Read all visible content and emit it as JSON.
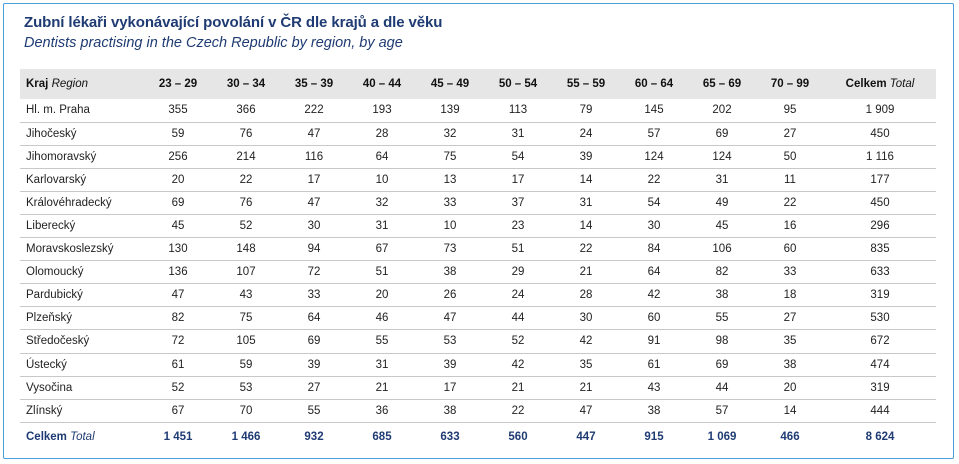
{
  "title": "Zubní lékaři vykonávající povolání v ČR dle krajů a dle věku",
  "subtitle": "Dentists practising in the Czech Republic by region, by age",
  "header": {
    "region_cz": "Kraj",
    "region_en": "Region",
    "ages": [
      "23 – 29",
      "30 – 34",
      "35 – 39",
      "40 – 44",
      "45 – 49",
      "50 – 54",
      "55 – 59",
      "60 – 64",
      "65 – 69",
      "70 – 99"
    ],
    "total_cz": "Celkem",
    "total_en": "Total"
  },
  "rows": [
    {
      "region": "Hl. m. Praha",
      "values": [
        "355",
        "366",
        "222",
        "193",
        "139",
        "113",
        "79",
        "145",
        "202",
        "95"
      ],
      "total": "1 909"
    },
    {
      "region": "Jihočeský",
      "values": [
        "59",
        "76",
        "47",
        "28",
        "32",
        "31",
        "24",
        "57",
        "69",
        "27"
      ],
      "total": "450"
    },
    {
      "region": "Jihomoravský",
      "values": [
        "256",
        "214",
        "116",
        "64",
        "75",
        "54",
        "39",
        "124",
        "124",
        "50"
      ],
      "total": "1 116"
    },
    {
      "region": "Karlovarský",
      "values": [
        "20",
        "22",
        "17",
        "10",
        "13",
        "17",
        "14",
        "22",
        "31",
        "11"
      ],
      "total": "177"
    },
    {
      "region": "Královéhradecký",
      "values": [
        "69",
        "76",
        "47",
        "32",
        "33",
        "37",
        "31",
        "54",
        "49",
        "22"
      ],
      "total": "450"
    },
    {
      "region": "Liberecký",
      "values": [
        "45",
        "52",
        "30",
        "31",
        "10",
        "23",
        "14",
        "30",
        "45",
        "16"
      ],
      "total": "296"
    },
    {
      "region": "Moravskoslezský",
      "values": [
        "130",
        "148",
        "94",
        "67",
        "73",
        "51",
        "22",
        "84",
        "106",
        "60"
      ],
      "total": "835"
    },
    {
      "region": "Olomoucký",
      "values": [
        "136",
        "107",
        "72",
        "51",
        "38",
        "29",
        "21",
        "64",
        "82",
        "33"
      ],
      "total": "633"
    },
    {
      "region": "Pardubický",
      "values": [
        "47",
        "43",
        "33",
        "20",
        "26",
        "24",
        "28",
        "42",
        "38",
        "18"
      ],
      "total": "319"
    },
    {
      "region": "Plzeňský",
      "values": [
        "82",
        "75",
        "64",
        "46",
        "47",
        "44",
        "30",
        "60",
        "55",
        "27"
      ],
      "total": "530"
    },
    {
      "region": "Středočeský",
      "values": [
        "72",
        "105",
        "69",
        "55",
        "53",
        "52",
        "42",
        "91",
        "98",
        "35"
      ],
      "total": "672"
    },
    {
      "region": "Ústecký",
      "values": [
        "61",
        "59",
        "39",
        "31",
        "39",
        "42",
        "35",
        "61",
        "69",
        "38"
      ],
      "total": "474"
    },
    {
      "region": "Vysočina",
      "values": [
        "52",
        "53",
        "27",
        "21",
        "17",
        "21",
        "21",
        "43",
        "44",
        "20"
      ],
      "total": "319"
    },
    {
      "region": "Zlínský",
      "values": [
        "67",
        "70",
        "55",
        "36",
        "38",
        "22",
        "47",
        "38",
        "57",
        "14"
      ],
      "total": "444"
    }
  ],
  "footer": {
    "label_cz": "Celkem",
    "label_en": "Total",
    "values": [
      "1 451",
      "1 466",
      "932",
      "685",
      "633",
      "560",
      "447",
      "915",
      "1 069",
      "466"
    ],
    "total": "8 624"
  },
  "colors": {
    "title": "#1f3b73",
    "frame": "#4a9fd8",
    "header_bg": "#e6e6e6"
  }
}
